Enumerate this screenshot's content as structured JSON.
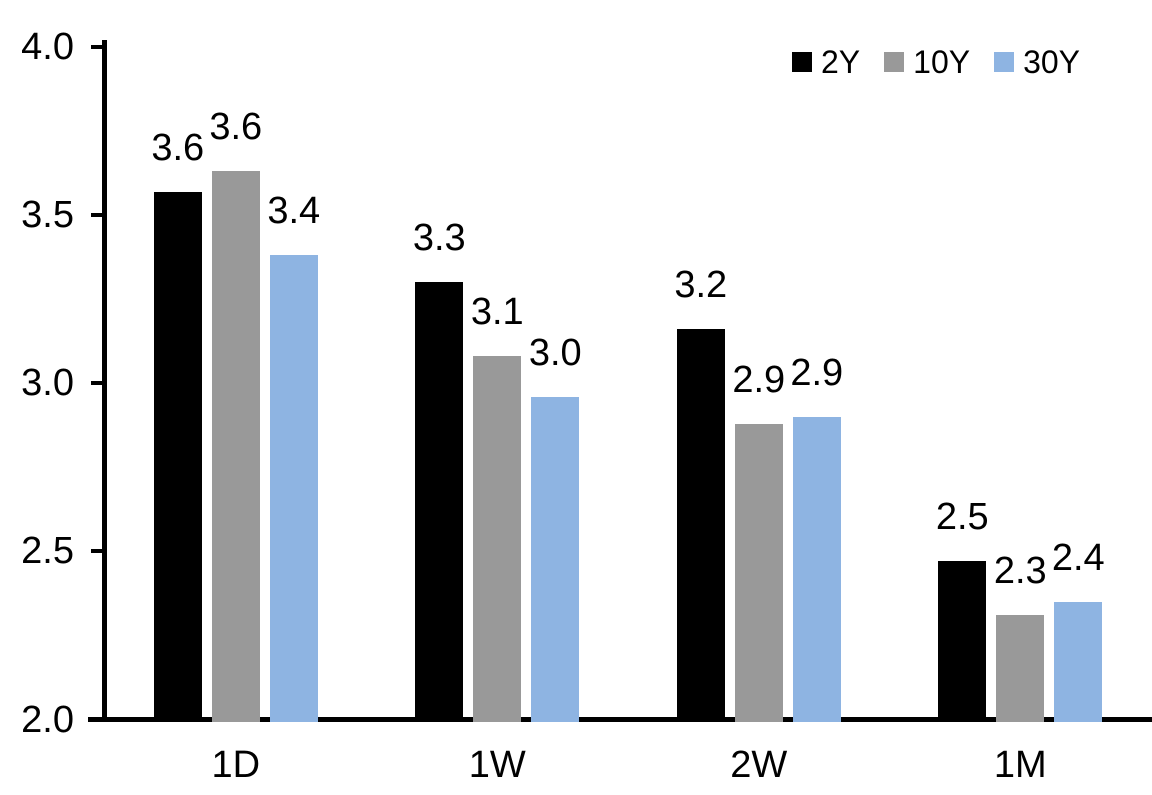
{
  "chart_data": {
    "type": "bar",
    "title": "",
    "xlabel": "",
    "ylabel": "",
    "categories": [
      "1D",
      "1W",
      "2W",
      "1M"
    ],
    "series": [
      {
        "name": "2Y",
        "color": "#000000",
        "values": [
          3.57,
          3.3,
          3.16,
          2.47
        ],
        "labels": [
          "3.6",
          "3.3",
          "3.2",
          "2.5"
        ]
      },
      {
        "name": "10Y",
        "color": "#999999",
        "values": [
          3.63,
          3.08,
          2.88,
          2.31
        ],
        "labels": [
          "3.6",
          "3.1",
          "2.9",
          "2.3"
        ]
      },
      {
        "name": "30Y",
        "color": "#8EB4E2",
        "values": [
          3.38,
          2.96,
          2.9,
          2.35
        ],
        "labels": [
          "3.4",
          "3.0",
          "2.9",
          "2.4"
        ]
      }
    ],
    "ylim": [
      2.0,
      4.0
    ],
    "y_ticks": [
      "4.0",
      "3.5",
      "3.0",
      "2.5",
      "2.0"
    ],
    "y_tick_values": [
      4.0,
      3.5,
      3.0,
      2.5,
      2.0
    ],
    "grid": "off",
    "legend_position": "top-right",
    "axis_color": "#000000",
    "text_color": "#000000",
    "background": "#FFFFFF"
  }
}
